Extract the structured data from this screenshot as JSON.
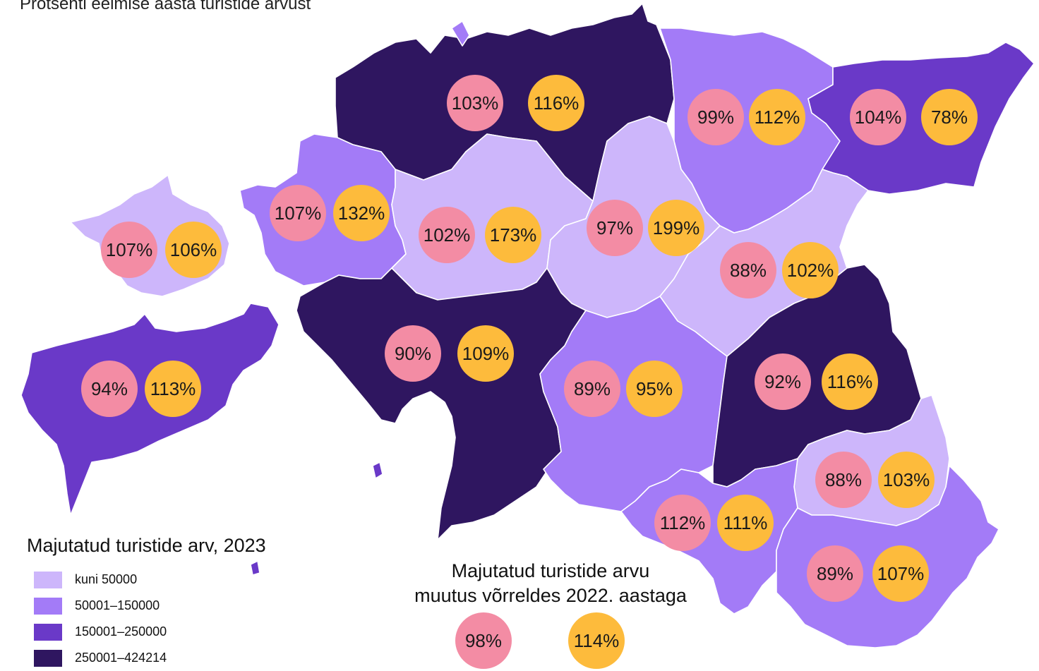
{
  "subtitle": "Protsenti eelmise aasta turistide arvust",
  "colors": {
    "level1": "#cdb6fb",
    "level2": "#a37bf7",
    "level3": "#6a39c8",
    "level4": "#2f1660",
    "pink": "#f38ca4",
    "orange": "#fdbb3c"
  },
  "legend_count": {
    "title": "Majutatud turistide arv, 2023",
    "items": [
      {
        "label": "kuni 50000",
        "color": "#cdb6fb"
      },
      {
        "label": "50001–150000",
        "color": "#a37bf7"
      },
      {
        "label": "150001–250000",
        "color": "#6a39c8"
      },
      {
        "label": "250001–424214",
        "color": "#2f1660"
      }
    ]
  },
  "legend_change": {
    "title_line1": "Majutatud turistide arvu",
    "title_line2": "muutus võrreldes 2022. aastaga",
    "sample_pink": "98%",
    "sample_orange": "114%"
  },
  "counties": [
    {
      "id": "harju",
      "level": 4,
      "pink": "103%",
      "orange": "116%"
    },
    {
      "id": "laane-viru",
      "level": 2,
      "pink": "99%",
      "orange": "112%"
    },
    {
      "id": "ida-viru",
      "level": 3,
      "pink": "104%",
      "orange": "78%"
    },
    {
      "id": "hiiu",
      "level": 1,
      "pink": "107%",
      "orange": "106%"
    },
    {
      "id": "laane",
      "level": 2,
      "pink": "107%",
      "orange": "132%"
    },
    {
      "id": "rapla",
      "level": 1,
      "pink": "102%",
      "orange": "173%"
    },
    {
      "id": "jarva",
      "level": 1,
      "pink": "97%",
      "orange": "199%"
    },
    {
      "id": "jogeva",
      "level": 1,
      "pink": "88%",
      "orange": "102%"
    },
    {
      "id": "saare",
      "level": 3,
      "pink": "94%",
      "orange": "113%"
    },
    {
      "id": "parnu",
      "level": 4,
      "pink": "90%",
      "orange": "109%"
    },
    {
      "id": "viljandi",
      "level": 2,
      "pink": "89%",
      "orange": "95%"
    },
    {
      "id": "tartu",
      "level": 4,
      "pink": "92%",
      "orange": "116%"
    },
    {
      "id": "polva",
      "level": 1,
      "pink": "88%",
      "orange": "103%"
    },
    {
      "id": "valga",
      "level": 2,
      "pink": "112%",
      "orange": "111%"
    },
    {
      "id": "voru",
      "level": 2,
      "pink": "89%",
      "orange": "107%"
    }
  ]
}
